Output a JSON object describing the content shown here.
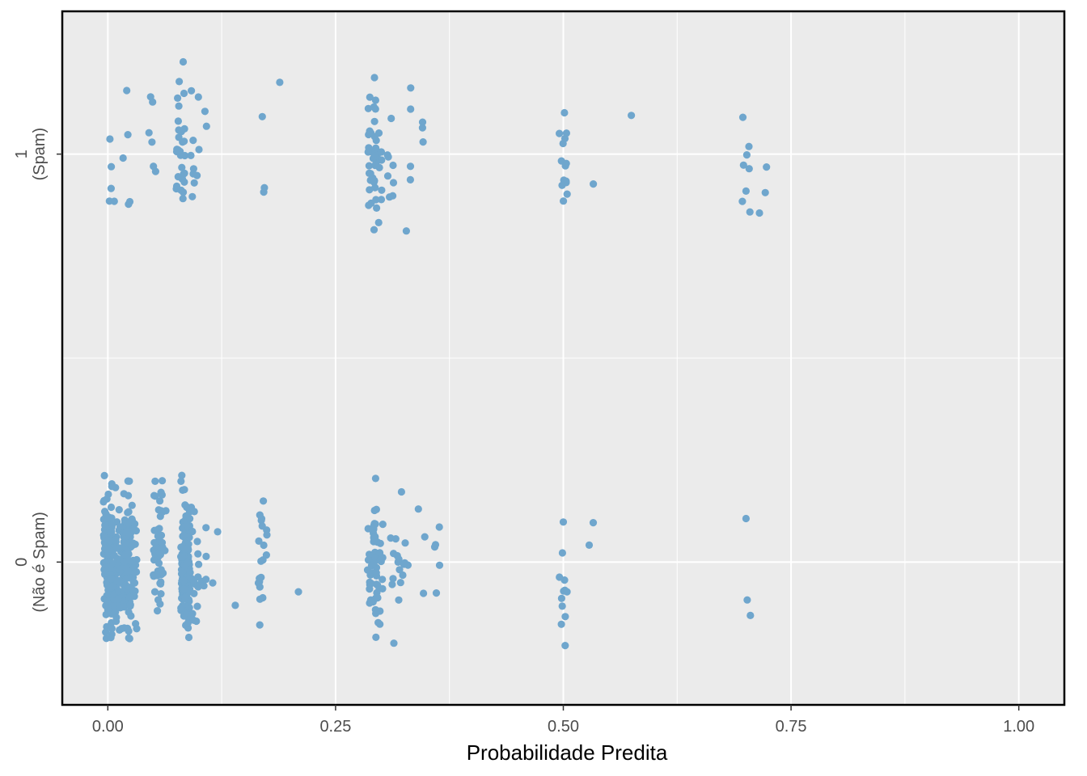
{
  "chart_data": {
    "type": "scatter",
    "title": "",
    "xlabel": "Probabilidade Predita",
    "ylabel": "",
    "xlim": [
      -0.05,
      1.05
    ],
    "ylim": [
      -0.35,
      1.35
    ],
    "grid": true,
    "x_ticks": [
      {
        "value": 0,
        "label": "0.00"
      },
      {
        "value": 0.25,
        "label": "0.25"
      },
      {
        "value": 0.5,
        "label": "0.50"
      },
      {
        "value": 0.75,
        "label": "0.75"
      },
      {
        "value": 1,
        "label": "1.00"
      }
    ],
    "y_ticks": [
      {
        "value": 0,
        "label_line1": "0",
        "label_line2": "(Não é Spam)"
      },
      {
        "value": 1,
        "label_line1": "1",
        "label_line2": "(Spam)"
      }
    ],
    "colors": {
      "points": "#6fa6cd",
      "panel": "#ebebeb",
      "grid": "#ffffff",
      "frame": "#000000"
    },
    "jitter": {
      "width": 0.005,
      "height": 0.25
    },
    "note_points": "points jittered around y=0 and y=1",
    "series": [
      {
        "values": [
          [
            0.0,
            0,
            100
          ],
          [
            0.005,
            0,
            60
          ],
          [
            0.015,
            0,
            50
          ],
          [
            0.022,
            0,
            45
          ],
          [
            0.027,
            0,
            40
          ],
          [
            0.055,
            0,
            45
          ],
          [
            0.06,
            0,
            8
          ],
          [
            0.085,
            0,
            130
          ],
          [
            0.095,
            0,
            20
          ],
          [
            0.105,
            0,
            5
          ],
          [
            0.12,
            0,
            2
          ],
          [
            0.143,
            0,
            1
          ],
          [
            0.17,
            0,
            20
          ],
          [
            0.205,
            0,
            1
          ],
          [
            0.29,
            0,
            35
          ],
          [
            0.297,
            0,
            25
          ],
          [
            0.315,
            0,
            10
          ],
          [
            0.325,
            0,
            8
          ],
          [
            0.345,
            0,
            3
          ],
          [
            0.363,
            0,
            5
          ],
          [
            0.5,
            0,
            12
          ],
          [
            0.532,
            0,
            2
          ],
          [
            0.703,
            0,
            3
          ],
          [
            0.005,
            1,
            5
          ],
          [
            0.02,
            1,
            5
          ],
          [
            0.05,
            1,
            6
          ],
          [
            0.08,
            1,
            30
          ],
          [
            0.095,
            1,
            10
          ],
          [
            0.11,
            1,
            2
          ],
          [
            0.17,
            1,
            3
          ],
          [
            0.19,
            1,
            1
          ],
          [
            0.29,
            1,
            25
          ],
          [
            0.297,
            1,
            25
          ],
          [
            0.31,
            1,
            8
          ],
          [
            0.33,
            1,
            5
          ],
          [
            0.345,
            1,
            3
          ],
          [
            0.5,
            1,
            14
          ],
          [
            0.532,
            1,
            1
          ],
          [
            0.57,
            1,
            1
          ],
          [
            0.7,
            1,
            8
          ],
          [
            0.72,
            1,
            3
          ]
        ]
      }
    ]
  }
}
